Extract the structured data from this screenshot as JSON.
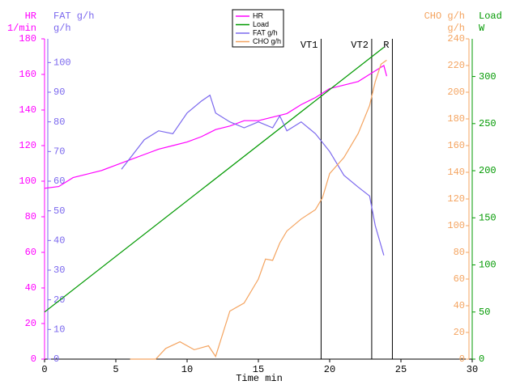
{
  "chart_data": {
    "type": "line",
    "x_label": "Time  min",
    "xlim": [
      0,
      30
    ],
    "xticks": [
      0,
      5,
      10,
      15,
      20,
      25,
      30
    ],
    "axes": [
      {
        "label": "HR",
        "unit": "1/min",
        "color": "#ff00ff",
        "ylim": [
          0,
          180
        ],
        "yticks": [
          0,
          20,
          40,
          60,
          80,
          100,
          120,
          140,
          160,
          180
        ]
      },
      {
        "label": "FAT g/h",
        "unit": "g/h",
        "color": "#7b68ee",
        "ylim": [
          0,
          108
        ],
        "yticks": [
          0,
          10,
          20,
          30,
          40,
          50,
          60,
          70,
          80,
          90,
          100
        ]
      },
      {
        "label": "CHO g/h",
        "unit": "g/h",
        "color": "#f4a460",
        "ylim": [
          0,
          240
        ],
        "yticks": [
          0,
          20,
          40,
          60,
          80,
          100,
          120,
          140,
          160,
          180,
          200,
          220,
          240
        ]
      },
      {
        "label": "Load",
        "unit": "W",
        "color": "#009900",
        "ylim": [
          0,
          340
        ],
        "yticks": [
          0,
          50,
          100,
          150,
          200,
          250,
          300
        ]
      }
    ],
    "series": [
      {
        "name": "HR",
        "color": "#ff00ff",
        "axis": 0,
        "x": [
          0,
          1,
          2,
          3,
          4,
          5,
          6,
          7,
          8,
          9,
          10,
          11,
          12,
          13,
          14,
          15,
          16,
          17,
          18,
          19,
          20,
          21,
          22,
          23,
          23.8,
          24
        ],
        "values": [
          96,
          97,
          102,
          104,
          106,
          109,
          112,
          115,
          118,
          120,
          122,
          125,
          129,
          131,
          134,
          134,
          136,
          138,
          143,
          147,
          152,
          154,
          156,
          161,
          165,
          159
        ]
      },
      {
        "name": "Load",
        "color": "#009900",
        "axis": 3,
        "x": [
          0,
          23.8
        ],
        "values": [
          50,
          331
        ]
      },
      {
        "name": "FAT g/h",
        "color": "#7b68ee",
        "axis": 1,
        "x": [
          5.4,
          7,
          8,
          9,
          10,
          11,
          11.6,
          12,
          13,
          14,
          15,
          16,
          16.5,
          17,
          18,
          19,
          20,
          21,
          22,
          22.8,
          23.2,
          23.8
        ],
        "values": [
          64,
          74,
          77,
          76,
          83,
          87,
          89,
          83,
          80,
          78,
          80,
          78,
          82,
          77,
          80,
          76,
          70,
          62,
          58,
          55,
          45,
          35
        ]
      },
      {
        "name": "CHO g/h",
        "color": "#f4a460",
        "axis": 2,
        "x": [
          6,
          7.8,
          8.5,
          9.5,
          10.5,
          11.5,
          12,
          13,
          14,
          15,
          15.5,
          16,
          16.5,
          17,
          18,
          19,
          19.5,
          20,
          21,
          22,
          22.8,
          23.2,
          23.6,
          24
        ],
        "values": [
          0,
          0,
          8,
          13,
          7,
          10,
          2,
          36,
          42,
          60,
          75,
          74,
          87,
          96,
          105,
          112,
          121,
          139,
          151,
          169,
          190,
          208,
          221,
          224
        ]
      }
    ],
    "markers": [
      {
        "label": "VT1",
        "x": 19.4
      },
      {
        "label": "VT2",
        "x": 22.95
      },
      {
        "label": "R",
        "x": 24.4
      }
    ]
  }
}
